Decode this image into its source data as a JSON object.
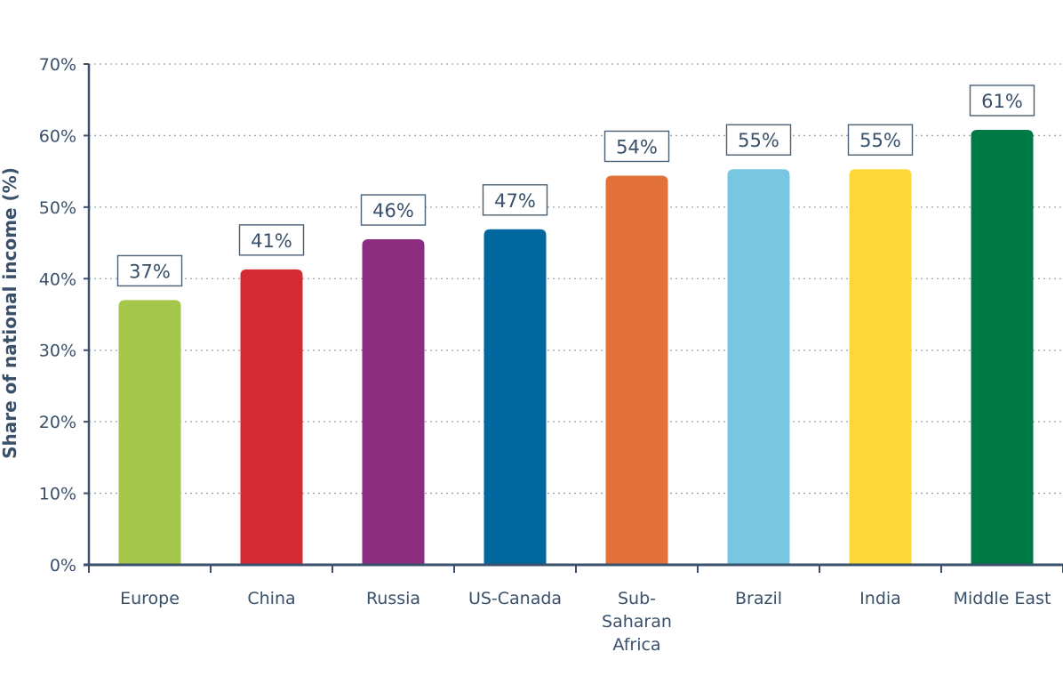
{
  "chart_data": {
    "type": "bar",
    "ylabel": "Share of national income (%)",
    "xlabel": "",
    "ylim": [
      0,
      70
    ],
    "yticks": [
      0,
      10,
      20,
      30,
      40,
      50,
      60,
      70
    ],
    "ytick_labels": [
      "0%",
      "10%",
      "20%",
      "30%",
      "40%",
      "50%",
      "60%",
      "70%"
    ],
    "grid": true,
    "categories": [
      [
        "Europe"
      ],
      [
        "China"
      ],
      [
        "Russia"
      ],
      [
        "US-Canada"
      ],
      [
        "Sub-",
        "Saharan",
        "Africa"
      ],
      [
        "Brazil"
      ],
      [
        "India"
      ],
      [
        "Middle East"
      ]
    ],
    "values": [
      37,
      41.3,
      45.5,
      46.9,
      54.4,
      55.3,
      55.3,
      60.8
    ],
    "data_labels": [
      "37%",
      "41%",
      "46%",
      "47%",
      "54%",
      "55%",
      "55%",
      "61%"
    ],
    "colors": [
      "#a4c64a",
      "#d52a31",
      "#8b2c7e",
      "#00689f",
      "#e2723a",
      "#77c7e3",
      "#fbd838",
      "#007a44"
    ]
  }
}
